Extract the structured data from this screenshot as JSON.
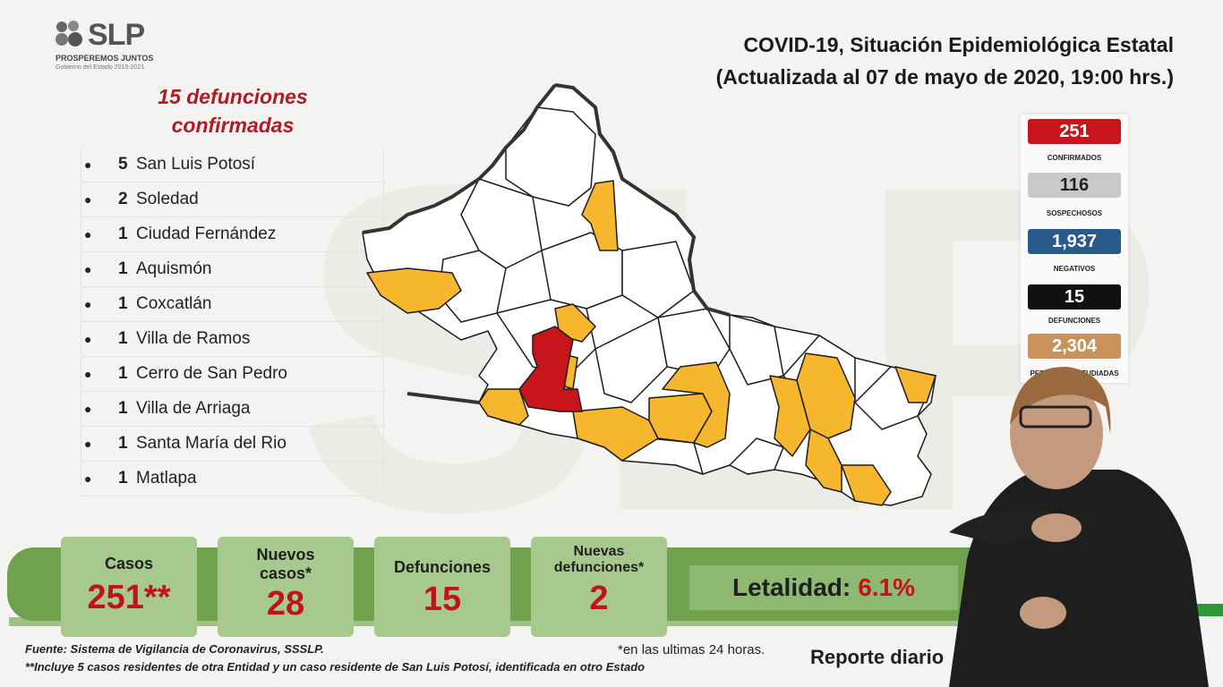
{
  "logo": {
    "name": "SLP",
    "tagline": "PROSPEREMOS JUNTOS",
    "sub": "Gobierno del Estado 2015-2021"
  },
  "header": {
    "title": "COVID-19, Situación Epidemiológica Estatal",
    "subtitle": "(Actualizada al 07 de mayo de 2020, 19:00 hrs.)"
  },
  "deaths_list": {
    "title_line1": "15 defunciones",
    "title_line2": "confirmadas",
    "items": [
      {
        "count": "5",
        "name": "San Luis Potosí"
      },
      {
        "count": "2",
        "name": "Soledad"
      },
      {
        "count": "1",
        "name": "Ciudad Fernández"
      },
      {
        "count": "1",
        "name": "Aquismón"
      },
      {
        "count": "1",
        "name": "Coxcatlán"
      },
      {
        "count": "1",
        "name": "Villa de Ramos"
      },
      {
        "count": "1",
        "name": "Cerro de San Pedro"
      },
      {
        "count": "1",
        "name": "Villa de Arriaga"
      },
      {
        "count": "1",
        "name": "Santa María del Rio"
      },
      {
        "count": "1",
        "name": "Matlapa"
      }
    ]
  },
  "stats_panel": [
    {
      "value": "251",
      "label": "CONFIRMADOS",
      "color": "#c8151c"
    },
    {
      "value": "116",
      "label": "SOSPECHOSOS",
      "color": "#c9c9c9"
    },
    {
      "value": "1,937",
      "label": "NEGATIVOS",
      "color": "#2a5a8c"
    },
    {
      "value": "15",
      "label": "DEFUNCIONES",
      "color": "#111111"
    },
    {
      "value": "2,304",
      "label": "PERSONAS ESTUDIADAS",
      "color": "#c8935a"
    }
  ],
  "cards": {
    "casos": {
      "label": "Casos",
      "value": "251**"
    },
    "nuevos": {
      "label1": "Nuevos",
      "label2": "casos*",
      "value": "28"
    },
    "defunciones": {
      "label": "Defunciones",
      "value": "15"
    },
    "nuevas_def": {
      "label1": "Nuevas",
      "label2": "defunciones*",
      "value": "2"
    }
  },
  "letalidad": {
    "label": "Letalidad:",
    "value": "6.1%"
  },
  "footer": {
    "fuente": "Fuente: Sistema de Vigilancia de Coronavirus, SSSLP.",
    "nota": "**Incluye 5 casos residentes de otra Entidad y un caso residente de San Luis Potosí, identificada en otro Estado",
    "ultimas": "*en las ultimas 24 horas.",
    "reporte": "Reporte diario"
  },
  "map_colors": {
    "deaths": "#c8151c",
    "cases": "#f6b72f",
    "none": "#ffffff",
    "border": "#1c1c1c"
  }
}
